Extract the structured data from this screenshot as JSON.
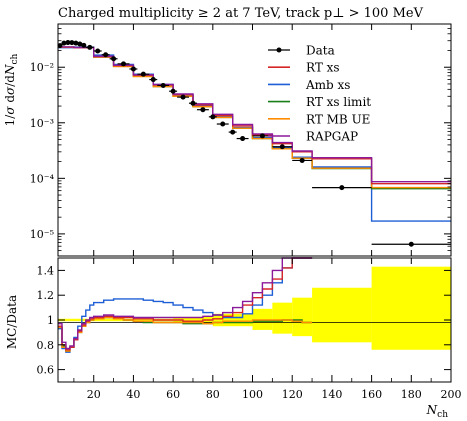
{
  "figure_title": "Charged multiplicity ≥ 2 at 7 TeV, track p⊥ > 100 MeV",
  "chart_data": [
    {
      "type": "line",
      "panel": "main",
      "xlabel": "N_ch",
      "ylabel": "1/σ dσ/dN_ch",
      "xlim": [
        2,
        200
      ],
      "ylim": [
        4e-06,
        0.06
      ],
      "yscale": "log",
      "yticks": [
        1e-05,
        0.0001,
        0.001,
        0.01
      ],
      "ytick_labels": [
        "10⁻⁵",
        "10⁻⁴",
        "10⁻³",
        "10⁻²"
      ],
      "legend_position": "top-right",
      "legend": [
        "Data",
        "RT xs",
        "Amb xs",
        "RT xs limit",
        "RT MB UE",
        "RAPGAP"
      ],
      "colors": {
        "data": "#000000",
        "rt_xs": "#d62728",
        "amb_xs": "#1f5fd6",
        "rt_xs_limit": "#1a7f1a",
        "rt_mb_ue": "#ff8c00",
        "rapgap": "#8b1a9a"
      },
      "data_points": [
        {
          "x": 3,
          "y": 0.0245,
          "xerr": 1
        },
        {
          "x": 5,
          "y": 0.0272,
          "xerr": 1
        },
        {
          "x": 7,
          "y": 0.0278,
          "xerr": 1
        },
        {
          "x": 9,
          "y": 0.0277,
          "xerr": 1
        },
        {
          "x": 11,
          "y": 0.0272,
          "xerr": 1
        },
        {
          "x": 13,
          "y": 0.0262,
          "xerr": 1
        },
        {
          "x": 15,
          "y": 0.0248,
          "xerr": 1
        },
        {
          "x": 18,
          "y": 0.0228,
          "xerr": 2
        },
        {
          "x": 22,
          "y": 0.0196,
          "xerr": 2
        },
        {
          "x": 26,
          "y": 0.0168,
          "xerr": 2
        },
        {
          "x": 30,
          "y": 0.0142,
          "xerr": 2
        },
        {
          "x": 35,
          "y": 0.0115,
          "xerr": 3
        },
        {
          "x": 40,
          "y": 0.0093,
          "xerr": 2
        },
        {
          "x": 45,
          "y": 0.0075,
          "xerr": 3
        },
        {
          "x": 50,
          "y": 0.006,
          "xerr": 2
        },
        {
          "x": 55,
          "y": 0.0047,
          "xerr": 3
        },
        {
          "x": 60,
          "y": 0.0037,
          "xerr": 2
        },
        {
          "x": 65,
          "y": 0.0029,
          "xerr": 3
        },
        {
          "x": 70,
          "y": 0.00225,
          "xerr": 2
        },
        {
          "x": 75,
          "y": 0.00172,
          "xerr": 3
        },
        {
          "x": 80,
          "y": 0.00128,
          "xerr": 2
        },
        {
          "x": 85,
          "y": 0.00095,
          "xerr": 3
        },
        {
          "x": 90,
          "y": 0.00068,
          "xerr": 2
        },
        {
          "x": 95,
          "y": 0.00052,
          "xerr": 3
        },
        {
          "x": 105,
          "y": 0.00058,
          "xerr": 5
        },
        {
          "x": 115,
          "y": 0.00037,
          "xerr": 5
        },
        {
          "x": 125,
          "y": 0.00021,
          "xerr": 5
        },
        {
          "x": 145,
          "y": 6.8e-05,
          "xerr": 15
        },
        {
          "x": 180,
          "y": 6.5e-06,
          "xerr": 20
        }
      ],
      "mc_edges": [
        2,
        10,
        20,
        30,
        40,
        50,
        60,
        70,
        80,
        90,
        100,
        110,
        120,
        130,
        160,
        200
      ],
      "series": [
        {
          "key": "rt_xs",
          "name": "RT xs",
          "values": [
            0.023,
            0.0225,
            0.0155,
            0.0107,
            0.0072,
            0.0048,
            0.0032,
            0.0021,
            0.00135,
            0.00088,
            0.0006,
            0.00042,
            0.0003,
            0.000225,
            8e-05
          ]
        },
        {
          "key": "amb_xs",
          "name": "Amb xs",
          "values": [
            0.0225,
            0.023,
            0.0165,
            0.0112,
            0.0075,
            0.0049,
            0.0032,
            0.002,
            0.00128,
            0.00082,
            0.00054,
            0.00036,
            0.00024,
            0.00016,
            1.7e-05
          ]
        },
        {
          "key": "rt_xs_limit",
          "name": "RT xs limit",
          "values": [
            0.023,
            0.0226,
            0.0153,
            0.0104,
            0.0069,
            0.0045,
            0.003,
            0.00195,
            0.00125,
            0.0008,
            0.00052,
            0.00034,
            0.00023,
            0.00015,
            6.5e-05
          ]
        },
        {
          "key": "rt_mb_ue",
          "name": "RT MB UE",
          "values": [
            0.0228,
            0.0225,
            0.0152,
            0.0103,
            0.0068,
            0.0045,
            0.003,
            0.00195,
            0.00125,
            0.0008,
            0.00052,
            0.00034,
            0.00023,
            0.000152,
            6.8e-05
          ]
        },
        {
          "key": "rapgap",
          "name": "RAPGAP",
          "values": [
            0.0232,
            0.0227,
            0.0158,
            0.0109,
            0.0073,
            0.0049,
            0.0033,
            0.0022,
            0.00142,
            0.00093,
            0.00063,
            0.00044,
            0.00031,
            0.000235,
            8.7e-05
          ]
        }
      ]
    },
    {
      "type": "line",
      "panel": "ratio",
      "xlabel": "N_ch",
      "ylabel": "MC/Data",
      "xlim": [
        2,
        200
      ],
      "ylim": [
        0.5,
        1.5
      ],
      "yticks": [
        0.6,
        0.8,
        1.0,
        1.2,
        1.4
      ],
      "ytick_labels": [
        "0.6",
        "0.8",
        "1",
        "1.2",
        "1.4"
      ],
      "xticks": [
        20,
        40,
        60,
        80,
        100,
        120,
        140,
        160,
        180,
        200
      ],
      "xtick_labels": [
        "20",
        "40",
        "60",
        "80",
        "100",
        "120",
        "140",
        "160",
        "180",
        "200"
      ],
      "band_color": "#ffff00",
      "uncertainty_band": [
        {
          "x0": 2,
          "x1": 60,
          "lo": 0.99,
          "hi": 1.01
        },
        {
          "x0": 60,
          "x1": 80,
          "lo": 0.975,
          "hi": 1.025
        },
        {
          "x0": 80,
          "x1": 100,
          "lo": 0.95,
          "hi": 1.05
        },
        {
          "x0": 100,
          "x1": 110,
          "lo": 0.92,
          "hi": 1.09
        },
        {
          "x0": 110,
          "x1": 120,
          "lo": 0.89,
          "hi": 1.14
        },
        {
          "x0": 120,
          "x1": 130,
          "lo": 0.87,
          "hi": 1.18
        },
        {
          "x0": 130,
          "x1": 160,
          "lo": 0.82,
          "hi": 1.26
        },
        {
          "x0": 160,
          "x1": 200,
          "lo": 0.76,
          "hi": 1.43
        }
      ],
      "ratio_x": [
        2,
        4,
        6,
        8,
        10,
        12,
        14,
        16,
        18,
        20,
        25,
        30,
        35,
        40,
        45,
        50,
        55,
        60,
        65,
        70,
        75,
        80,
        85,
        90,
        95,
        100,
        105,
        110,
        115,
        120,
        125,
        130
      ],
      "series": [
        {
          "key": "rt_xs",
          "name": "RT xs",
          "values": [
            0.95,
            0.8,
            0.76,
            0.78,
            0.84,
            0.91,
            0.96,
            0.99,
            1.01,
            1.02,
            1.03,
            1.02,
            1.02,
            1.01,
            1.01,
            1.0,
            1.0,
            1.0,
            0.99,
            0.99,
            1.0,
            1.01,
            1.03,
            1.06,
            1.12,
            1.18,
            1.25,
            1.33,
            1.42,
            1.5,
            1.52,
            1.52
          ]
        },
        {
          "key": "amb_xs",
          "name": "Amb xs",
          "values": [
            0.93,
            0.77,
            0.74,
            0.78,
            0.86,
            0.95,
            1.03,
            1.08,
            1.12,
            1.14,
            1.16,
            1.17,
            1.17,
            1.17,
            1.16,
            1.15,
            1.14,
            1.12,
            1.1,
            1.08,
            1.06,
            1.04,
            1.02,
            1.02,
            1.05,
            1.12,
            1.2,
            1.3,
            1.42,
            1.52,
            1.52,
            1.52
          ]
        },
        {
          "key": "rt_xs_limit",
          "name": "RT xs limit",
          "values": [
            0.94,
            0.79,
            0.75,
            0.78,
            0.84,
            0.9,
            0.95,
            0.98,
            1.0,
            1.01,
            1.02,
            1.01,
            1.0,
            0.99,
            0.98,
            0.98,
            0.98,
            0.98,
            0.97,
            0.97,
            0.97,
            0.98,
            0.98,
            0.98,
            0.98,
            0.99,
            0.99,
            0.99,
            1.0,
            1.0,
            0.98,
            0.96
          ]
        },
        {
          "key": "rt_mb_ue",
          "name": "RT MB UE",
          "values": [
            0.94,
            0.78,
            0.75,
            0.78,
            0.84,
            0.9,
            0.95,
            0.98,
            1.0,
            1.01,
            1.02,
            1.01,
            1.0,
            0.99,
            0.99,
            0.98,
            0.98,
            0.98,
            0.98,
            0.98,
            0.97,
            0.98,
            0.99,
            0.99,
            0.99,
            1.0,
            1.0,
            1.0,
            1.0,
            0.99,
            0.98,
            0.96
          ]
        },
        {
          "key": "rapgap",
          "name": "RAPGAP",
          "values": [
            0.97,
            0.82,
            0.77,
            0.79,
            0.85,
            0.92,
            0.97,
            1.0,
            1.02,
            1.03,
            1.04,
            1.03,
            1.03,
            1.02,
            1.02,
            1.02,
            1.02,
            1.02,
            1.02,
            1.02,
            1.03,
            1.04,
            1.06,
            1.1,
            1.15,
            1.22,
            1.3,
            1.4,
            1.5,
            1.52,
            1.52,
            1.52
          ]
        }
      ]
    }
  ]
}
